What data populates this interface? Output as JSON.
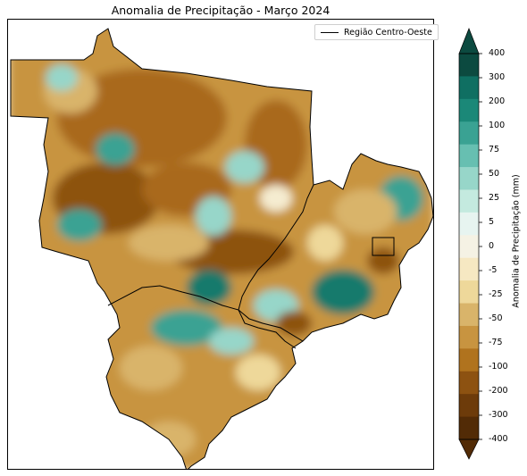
{
  "map": {
    "title": "Anomalia de Precipitação - Março 2024",
    "legend_label": "Região Centro-Oeste"
  },
  "colorbar": {
    "label": "Anomalia de Precipitação (mm)",
    "ticks": [
      "400",
      "300",
      "200",
      "100",
      "75",
      "50",
      "25",
      "5",
      "0",
      "-5",
      "-25",
      "-50",
      "-75",
      "-100",
      "-200",
      "-300",
      "-400"
    ],
    "colors": [
      "#0c4a40",
      "#0f6f62",
      "#1b8878",
      "#3aa293",
      "#67bfb1",
      "#97d6c9",
      "#c4eadf",
      "#e7f4f0",
      "#f5f2e4",
      "#f6e8c2",
      "#eed89a",
      "#d9b46a",
      "#c89440",
      "#b0731e",
      "#8d5211",
      "#6d3b0a",
      "#522b06"
    ]
  },
  "palette": {
    "deep_brown": "#8d5211",
    "brown": "#a9691c",
    "ochre": "#c89440",
    "tan": "#d9b46a",
    "sand": "#eed89a",
    "cream": "#f5ecd0",
    "teal_light": "#97d6c9",
    "teal": "#3aa293",
    "teal_dark": "#147a6c"
  }
}
